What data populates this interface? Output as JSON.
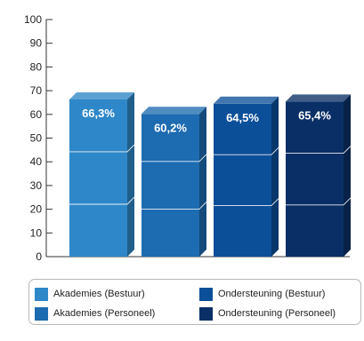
{
  "chart_data": {
    "type": "bar",
    "style": "3d-stacked-appearance",
    "categories": [
      "Akademies (Bestuur)",
      "Akademies (Personeel)",
      "Ondersteuning (Bestuur)",
      "Ondersteuning (Personeel)"
    ],
    "values": [
      66.3,
      60.2,
      64.5,
      65.4
    ],
    "data_labels": [
      "66,3%",
      "60,2%",
      "64,5%",
      "65,4%"
    ],
    "ylim": [
      0,
      100
    ],
    "yticks": [
      0,
      10,
      20,
      30,
      40,
      50,
      60,
      70,
      80,
      90,
      100
    ],
    "ytick_labels": [
      "0",
      "10",
      "20",
      "30",
      "40",
      "50",
      "60",
      "70",
      "80",
      "90",
      "100"
    ],
    "grid": false,
    "legend_position": "bottom",
    "colors": [
      "#2e87c8",
      "#1d6bb0",
      "#0c4f99",
      "#0a2f66"
    ],
    "title": "",
    "xlabel": "",
    "ylabel": ""
  },
  "legend": {
    "items": [
      {
        "label": "Akademies (Bestuur)",
        "color": "#2e87c8"
      },
      {
        "label": "Ondersteuning (Bestuur)",
        "color": "#0c4f99"
      },
      {
        "label": "Akademies (Personeel)",
        "color": "#1d6bb0"
      },
      {
        "label": "Ondersteuning (Personeel)",
        "color": "#0a2f66"
      }
    ]
  }
}
